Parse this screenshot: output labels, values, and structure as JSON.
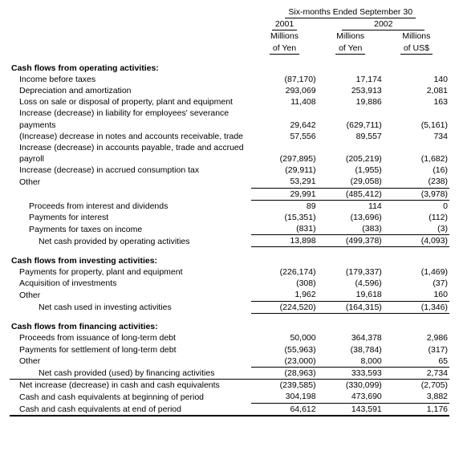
{
  "header": {
    "period": "Six-months Ended September 30",
    "years": [
      "2001",
      "2002"
    ],
    "units_yen": "Millions of Yen",
    "units_usd": "Millions of US$"
  },
  "sections": {
    "operating": {
      "title": "Cash flows from operating activities:",
      "rows": [
        {
          "label": "Income before taxes",
          "c1": "(87,170)",
          "c2": "17,174",
          "c3": "140"
        },
        {
          "label": "Depreciation and amortization",
          "c1": "293,069",
          "c2": "253,913",
          "c3": "2,081"
        },
        {
          "label": "Loss on sale or disposal of property, plant and equipment",
          "c1": "11,408",
          "c2": "19,886",
          "c3": "163"
        },
        {
          "label": "Increase (decrease) in liability for employees' severance payments",
          "c1": "29,642",
          "c2": "(629,711)",
          "c3": "(5,161)"
        },
        {
          "label": "(Increase) decrease in notes and accounts receivable, trade",
          "c1": "57,556",
          "c2": "89,557",
          "c3": "734"
        },
        {
          "label": "Increase (decrease) in accounts payable, trade and accrued payroll",
          "c1": "(297,895)",
          "c2": "(205,219)",
          "c3": "(1,682)"
        },
        {
          "label": "Increase (decrease) in accrued consumption tax",
          "c1": "(29,911)",
          "c2": "(1,955)",
          "c3": "(16)"
        },
        {
          "label": "Other",
          "c1": "53,291",
          "c2": "(29,058)",
          "c3": "(238)"
        }
      ],
      "subtotal1": {
        "c1": "29,991",
        "c2": "(485,412)",
        "c3": "(3,978)"
      },
      "rows2": [
        {
          "label": "Proceeds from interest and dividends",
          "c1": "89",
          "c2": "114",
          "c3": "0"
        },
        {
          "label": "Payments for interest",
          "c1": "(15,351)",
          "c2": "(13,696)",
          "c3": "(112)"
        },
        {
          "label": "Payments for taxes on income",
          "c1": "(831)",
          "c2": "(383)",
          "c3": "(3)"
        }
      ],
      "net": {
        "label": "Net cash provided by operating activities",
        "c1": "13,898",
        "c2": "(499,378)",
        "c3": "(4,093)"
      }
    },
    "investing": {
      "title": "Cash flows from investing activities:",
      "rows": [
        {
          "label": "Payments for property, plant and equipment",
          "c1": "(226,174)",
          "c2": "(179,337)",
          "c3": "(1,469)"
        },
        {
          "label": "Acquisition of investments",
          "c1": "(308)",
          "c2": "(4,596)",
          "c3": "(37)"
        },
        {
          "label": "Other",
          "c1": "1,962",
          "c2": "19,618",
          "c3": "160"
        }
      ],
      "net": {
        "label": "Net cash used in investing activities",
        "c1": "(224,520)",
        "c2": "(164,315)",
        "c3": "(1,346)"
      }
    },
    "financing": {
      "title": "Cash flows from financing activities:",
      "rows": [
        {
          "label": "Proceeds from issuance of long-term debt",
          "c1": "50,000",
          "c2": "364,378",
          "c3": "2,986"
        },
        {
          "label": "Payments for settlement of long-term debt",
          "c1": "(55,963)",
          "c2": "(38,784)",
          "c3": "(317)"
        },
        {
          "label": "Other",
          "c1": "(23,000)",
          "c2": "8,000",
          "c3": "65"
        }
      ],
      "net": {
        "label": "Net cash provided (used) by financing activities",
        "c1": "(28,963)",
        "c2": "333,593",
        "c3": "2,734"
      }
    },
    "summary": [
      {
        "label": "Net increase (decrease) in cash and cash equivalents",
        "c1": "(239,585)",
        "c2": "(330,099)",
        "c3": "(2,705)"
      },
      {
        "label": "Cash and cash equivalents at beginning of period",
        "c1": "304,198",
        "c2": "473,690",
        "c3": "3,882"
      },
      {
        "label": "Cash and cash equivalents at end of period",
        "c1": "64,612",
        "c2": "143,591",
        "c3": "1,176"
      }
    ]
  }
}
